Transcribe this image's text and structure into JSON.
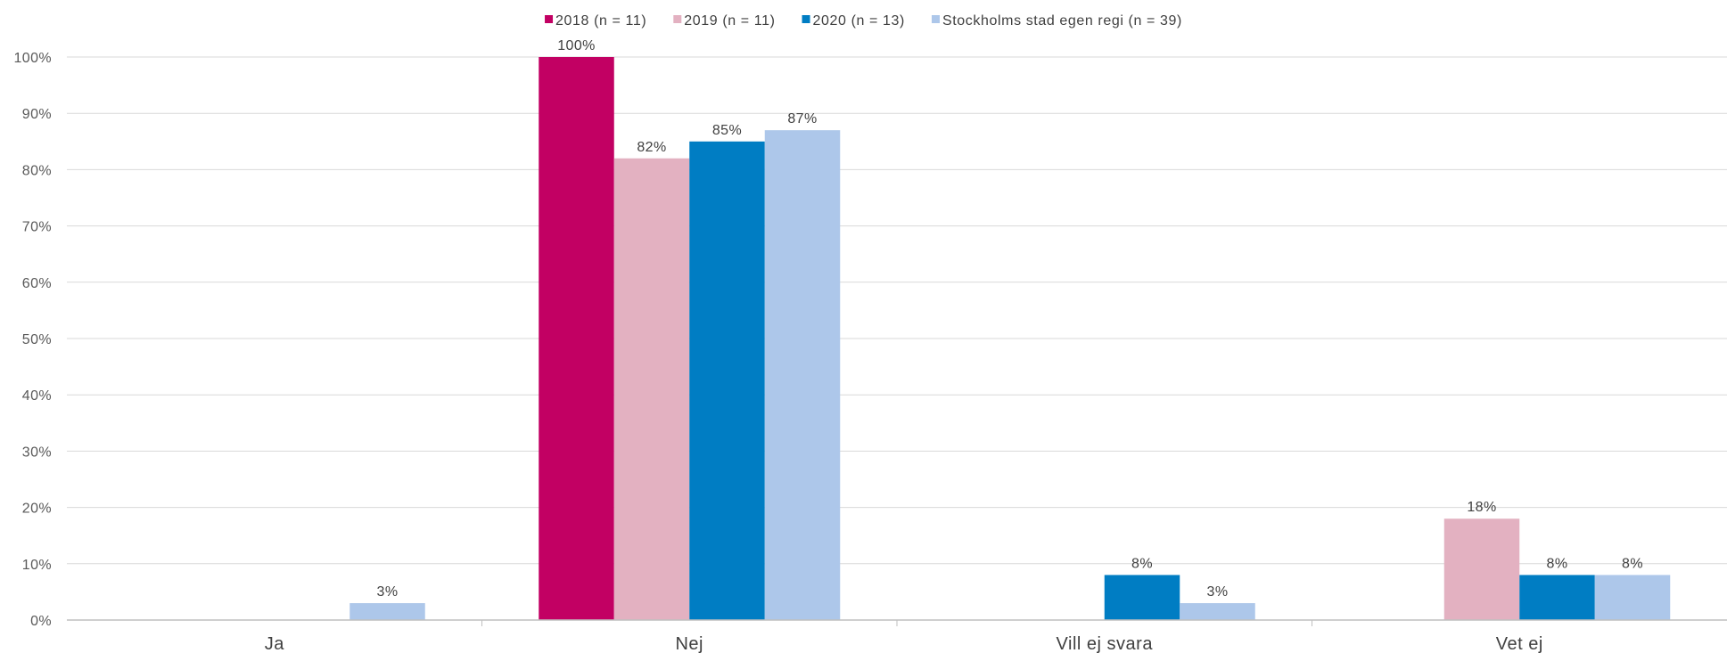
{
  "chart_data": {
    "type": "bar",
    "categories": [
      "Ja",
      "Nej",
      "Vill ej svara",
      "Vet ej"
    ],
    "series": [
      {
        "name": "2018 (n = 11)",
        "color": "#c20063",
        "values": [
          null,
          100,
          null,
          null
        ],
        "labels": [
          "",
          "100%",
          "",
          ""
        ]
      },
      {
        "name": "2019 (n = 11)",
        "color": "#e3b1c1",
        "values": [
          null,
          82,
          null,
          18
        ],
        "labels": [
          "",
          "82%",
          "",
          "18%"
        ]
      },
      {
        "name": "2020 (n = 13)",
        "color": "#007dc3",
        "values": [
          null,
          85,
          8,
          8
        ],
        "labels": [
          "",
          "85%",
          "8%",
          "8%"
        ]
      },
      {
        "name": "Stockholms stad egen regi (n = 39)",
        "color": "#adc7ea",
        "values": [
          3,
          87,
          3,
          8
        ],
        "labels": [
          "3%",
          "87%",
          "3%",
          "8%"
        ]
      }
    ],
    "y_ticks": [
      "0%",
      "10%",
      "20%",
      "30%",
      "40%",
      "50%",
      "60%",
      "70%",
      "80%",
      "90%",
      "100%"
    ],
    "ylim": [
      0,
      100
    ],
    "grid": true,
    "legend_position": "top-center",
    "title": "",
    "xlabel": "",
    "ylabel": ""
  }
}
